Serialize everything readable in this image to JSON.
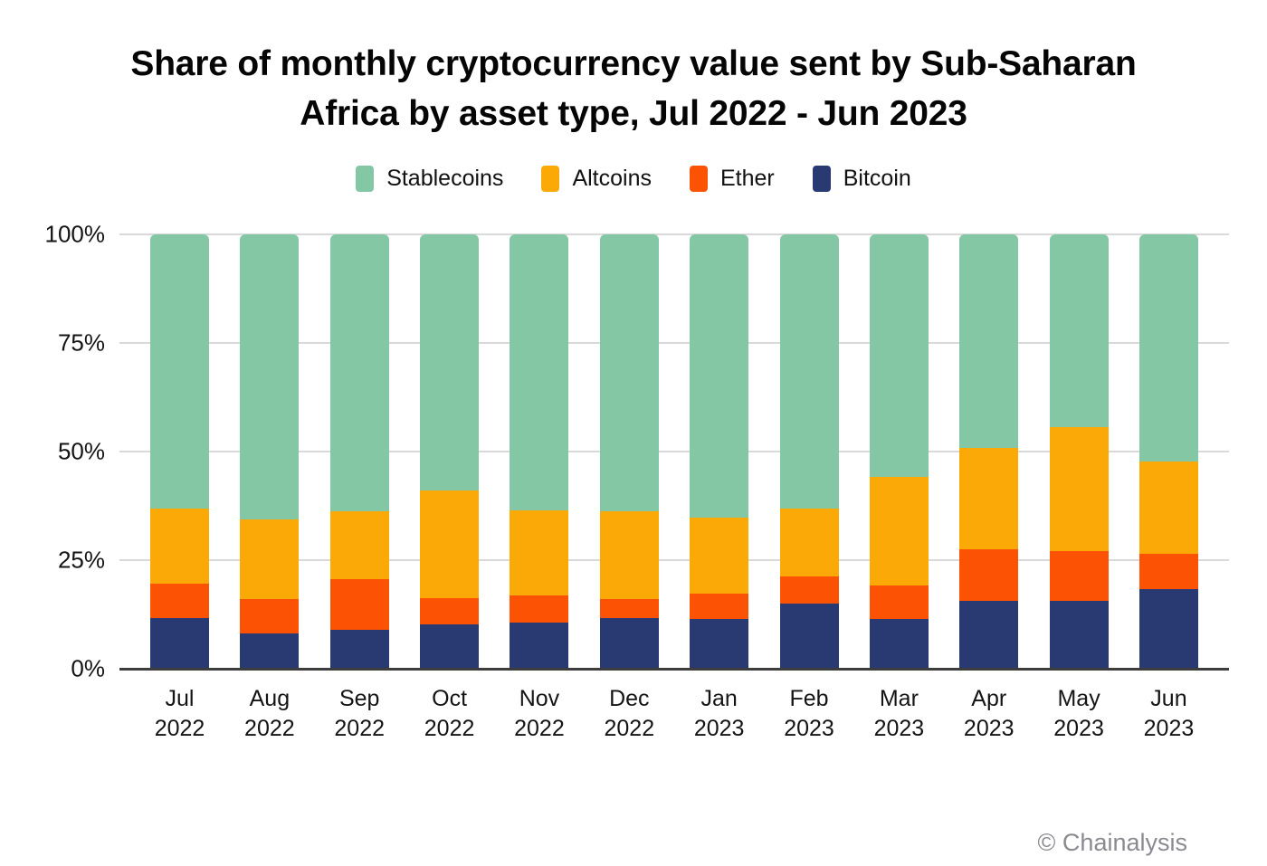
{
  "title_line1": "Share of monthly cryptocurrency value sent by Sub-Saharan",
  "title_line2": "Africa by asset type, Jul 2022 - Jun 2023",
  "attribution": "© Chainalysis",
  "legend": [
    {
      "label": "Stablecoins",
      "color": "#84C7A4"
    },
    {
      "label": "Altcoins",
      "color": "#FBA906"
    },
    {
      "label": "Ether",
      "color": "#FC5203"
    },
    {
      "label": "Bitcoin",
      "color": "#283A71"
    }
  ],
  "y_ticks": [
    "100%",
    "75%",
    "50%",
    "25%",
    "0%"
  ],
  "chart_data": {
    "type": "bar",
    "stacked": true,
    "title": "Share of monthly cryptocurrency value sent by Sub-Saharan Africa by asset type, Jul 2022 - Jun 2023",
    "xlabel": "",
    "ylabel": "",
    "ylim": [
      0,
      100
    ],
    "grid": true,
    "legend_position": "top",
    "unit": "%",
    "categories": [
      "Jul 2022",
      "Aug 2022",
      "Sep 2022",
      "Oct 2022",
      "Nov 2022",
      "Dec 2022",
      "Jan 2023",
      "Feb 2023",
      "Mar 2023",
      "Apr 2023",
      "May 2023",
      "Jun 2023"
    ],
    "category_lines": [
      [
        "Jul",
        "2022"
      ],
      [
        "Aug",
        "2022"
      ],
      [
        "Sep",
        "2022"
      ],
      [
        "Oct",
        "2022"
      ],
      [
        "Nov",
        "2022"
      ],
      [
        "Dec",
        "2022"
      ],
      [
        "Jan",
        "2023"
      ],
      [
        "Feb",
        "2023"
      ],
      [
        "Mar",
        "2023"
      ],
      [
        "Apr",
        "2023"
      ],
      [
        "May",
        "2023"
      ],
      [
        "Jun",
        "2023"
      ]
    ],
    "stack_order": "bottom-to-top",
    "series": [
      {
        "name": "Bitcoin",
        "color": "#283A71",
        "values": [
          11.7,
          8.2,
          9.1,
          10.3,
          10.6,
          11.7,
          11.5,
          15.0,
          11.6,
          15.6,
          15.6,
          18.4
        ]
      },
      {
        "name": "Ether",
        "color": "#FC5203",
        "values": [
          7.9,
          7.8,
          11.6,
          5.9,
          6.3,
          4.3,
          5.8,
          6.3,
          7.6,
          12.0,
          11.5,
          8.2
        ]
      },
      {
        "name": "Altcoins",
        "color": "#FBA906",
        "values": [
          17.4,
          18.4,
          15.6,
          24.8,
          19.6,
          20.3,
          17.6,
          15.7,
          25.1,
          23.2,
          28.5,
          21.2
        ]
      },
      {
        "name": "Stablecoins",
        "color": "#84C7A4",
        "values": [
          63.0,
          65.6,
          63.7,
          59.0,
          63.5,
          63.7,
          65.1,
          63.0,
          55.7,
          49.2,
          44.4,
          52.2
        ]
      }
    ]
  }
}
